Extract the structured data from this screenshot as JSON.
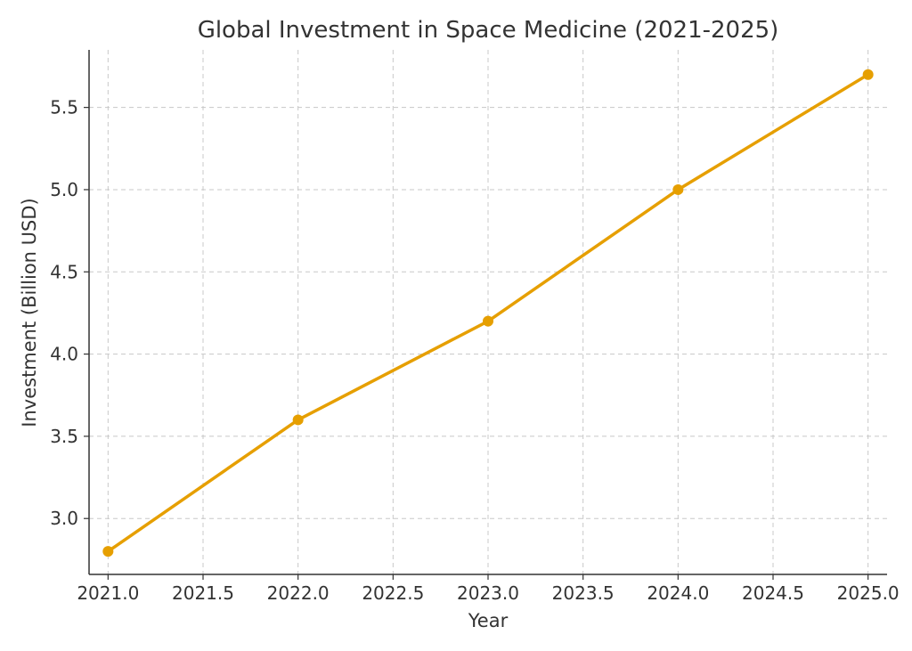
{
  "chart_data": {
    "type": "line",
    "title": "Global Investment in Space Medicine (2021-2025)",
    "xlabel": "Year",
    "ylabel": "Investment (Billion USD)",
    "xlim": [
      2020.9,
      2025.1
    ],
    "ylim": [
      2.66,
      5.85
    ],
    "x_ticks": [
      2021.0,
      2021.5,
      2022.0,
      2022.5,
      2023.0,
      2023.5,
      2024.0,
      2024.5,
      2025.0
    ],
    "y_ticks": [
      3.0,
      3.5,
      4.0,
      4.5,
      5.0,
      5.5
    ],
    "grid": true,
    "series": [
      {
        "color": "#e69f00",
        "x": [
          2021,
          2022,
          2023,
          2024,
          2025
        ],
        "y": [
          2.8,
          3.6,
          4.2,
          5.0,
          5.7
        ]
      }
    ]
  }
}
